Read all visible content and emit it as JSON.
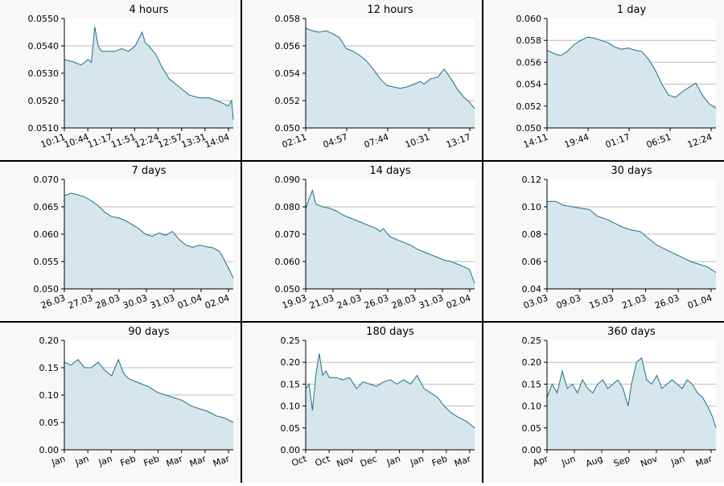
{
  "chart_data": [
    {
      "type": "area",
      "title": "4 hours",
      "ylim": [
        0.051,
        0.055
      ],
      "yticks": [
        "0.0510",
        "0.0520",
        "0.0530",
        "0.0540",
        "0.0550"
      ],
      "xticks": [
        "10:11",
        "10:44",
        "11:17",
        "11:51",
        "12:24",
        "12:57",
        "13:31",
        "14:04"
      ],
      "x": [
        0,
        0.06,
        0.1,
        0.14,
        0.16,
        0.18,
        0.2,
        0.22,
        0.26,
        0.3,
        0.34,
        0.38,
        0.42,
        0.46,
        0.48,
        0.5,
        0.54,
        0.58,
        0.62,
        0.66,
        0.7,
        0.74,
        0.8,
        0.86,
        0.9,
        0.94,
        0.97,
        0.99,
        1.0
      ],
      "y": [
        0.0535,
        0.0534,
        0.0533,
        0.0535,
        0.0534,
        0.0547,
        0.054,
        0.0538,
        0.0538,
        0.0538,
        0.0539,
        0.0538,
        0.054,
        0.0545,
        0.0541,
        0.054,
        0.0537,
        0.0532,
        0.0528,
        0.0526,
        0.0524,
        0.0522,
        0.0521,
        0.0521,
        0.052,
        0.0519,
        0.0518,
        0.052,
        0.0513
      ]
    },
    {
      "type": "area",
      "title": "12 hours",
      "ylim": [
        0.05,
        0.058
      ],
      "yticks": [
        "0.050",
        "0.052",
        "0.054",
        "0.056",
        "0.058"
      ],
      "xticks": [
        "02:11",
        "04:57",
        "07:44",
        "10:31",
        "13:17"
      ],
      "x": [
        0,
        0.04,
        0.08,
        0.12,
        0.16,
        0.2,
        0.24,
        0.28,
        0.32,
        0.36,
        0.4,
        0.44,
        0.48,
        0.52,
        0.56,
        0.6,
        0.64,
        0.68,
        0.7,
        0.74,
        0.78,
        0.82,
        0.86,
        0.9,
        0.94,
        0.97,
        1.0
      ],
      "y": [
        0.0573,
        0.0571,
        0.057,
        0.0571,
        0.0569,
        0.0566,
        0.0558,
        0.0556,
        0.0553,
        0.0549,
        0.0543,
        0.0536,
        0.0531,
        0.053,
        0.0529,
        0.053,
        0.0532,
        0.0534,
        0.0532,
        0.0536,
        0.0537,
        0.0543,
        0.0536,
        0.0528,
        0.0522,
        0.0519,
        0.0514
      ]
    },
    {
      "type": "area",
      "title": "1 day",
      "ylim": [
        0.05,
        0.06
      ],
      "yticks": [
        "0.050",
        "0.052",
        "0.054",
        "0.056",
        "0.058",
        "0.060"
      ],
      "xticks": [
        "14:11",
        "19:44",
        "01:17",
        "06:51",
        "12:24"
      ],
      "x": [
        0,
        0.04,
        0.08,
        0.12,
        0.16,
        0.2,
        0.24,
        0.28,
        0.32,
        0.36,
        0.4,
        0.44,
        0.48,
        0.52,
        0.56,
        0.6,
        0.64,
        0.68,
        0.72,
        0.76,
        0.8,
        0.84,
        0.88,
        0.92,
        0.96,
        1.0
      ],
      "y": [
        0.0571,
        0.0568,
        0.0566,
        0.057,
        0.0576,
        0.058,
        0.0583,
        0.0582,
        0.058,
        0.0578,
        0.0574,
        0.0572,
        0.0573,
        0.0571,
        0.057,
        0.0563,
        0.0553,
        0.054,
        0.053,
        0.0528,
        0.0533,
        0.0537,
        0.0541,
        0.053,
        0.0522,
        0.0518
      ]
    },
    {
      "type": "area",
      "title": "7 days",
      "ylim": [
        0.05,
        0.07
      ],
      "yticks": [
        "0.050",
        "0.055",
        "0.060",
        "0.065",
        "0.070"
      ],
      "xticks": [
        "26.03",
        "27.03",
        "28.03",
        "30.03",
        "31.03",
        "01.04",
        "02.04"
      ],
      "x": [
        0,
        0.04,
        0.08,
        0.12,
        0.16,
        0.2,
        0.24,
        0.28,
        0.32,
        0.36,
        0.4,
        0.44,
        0.48,
        0.52,
        0.56,
        0.6,
        0.64,
        0.68,
        0.72,
        0.76,
        0.8,
        0.84,
        0.88,
        0.92,
        0.96,
        1.0
      ],
      "y": [
        0.067,
        0.0675,
        0.0672,
        0.0668,
        0.0661,
        0.0652,
        0.064,
        0.0632,
        0.063,
        0.0625,
        0.0618,
        0.061,
        0.06,
        0.0596,
        0.0602,
        0.0598,
        0.0605,
        0.059,
        0.058,
        0.0576,
        0.058,
        0.0577,
        0.0575,
        0.0568,
        0.0545,
        0.052
      ]
    },
    {
      "type": "area",
      "title": "14 days",
      "ylim": [
        0.05,
        0.09
      ],
      "yticks": [
        "0.050",
        "0.060",
        "0.070",
        "0.080",
        "0.090"
      ],
      "xticks": [
        "19.03",
        "21.03",
        "24.03",
        "26.03",
        "28.03",
        "31.03",
        "02.04"
      ],
      "x": [
        0,
        0.02,
        0.04,
        0.06,
        0.1,
        0.14,
        0.18,
        0.22,
        0.26,
        0.3,
        0.34,
        0.38,
        0.42,
        0.44,
        0.46,
        0.5,
        0.54,
        0.58,
        0.62,
        0.66,
        0.7,
        0.74,
        0.78,
        0.82,
        0.86,
        0.9,
        0.94,
        0.97,
        1.0
      ],
      "y": [
        0.079,
        0.083,
        0.086,
        0.081,
        0.08,
        0.0795,
        0.0785,
        0.077,
        0.076,
        0.075,
        0.074,
        0.073,
        0.072,
        0.071,
        0.072,
        0.069,
        0.068,
        0.067,
        0.066,
        0.0645,
        0.0635,
        0.0625,
        0.0615,
        0.0605,
        0.06,
        0.059,
        0.058,
        0.057,
        0.052
      ]
    },
    {
      "type": "area",
      "title": "30 days",
      "ylim": [
        0.04,
        0.12
      ],
      "yticks": [
        "0.04",
        "0.06",
        "0.08",
        "0.10",
        "0.12"
      ],
      "xticks": [
        "03.03",
        "09.03",
        "15.03",
        "21.03",
        "26.03",
        "01.04"
      ],
      "x": [
        0,
        0.05,
        0.1,
        0.15,
        0.2,
        0.25,
        0.3,
        0.35,
        0.4,
        0.45,
        0.5,
        0.55,
        0.6,
        0.65,
        0.7,
        0.75,
        0.8,
        0.85,
        0.9,
        0.95,
        1.0
      ],
      "y": [
        0.104,
        0.104,
        0.101,
        0.1,
        0.099,
        0.098,
        0.093,
        0.091,
        0.088,
        0.085,
        0.083,
        0.082,
        0.077,
        0.072,
        0.069,
        0.066,
        0.063,
        0.06,
        0.058,
        0.056,
        0.052
      ]
    },
    {
      "type": "area",
      "title": "90 days",
      "ylim": [
        0,
        0.2
      ],
      "yticks": [
        "0.00",
        "0.05",
        "0.10",
        "0.15",
        "0.20"
      ],
      "xticks": [
        "Jan",
        "Jan",
        "Jan",
        "Feb",
        "Feb",
        "Mar",
        "Mar",
        "Mar"
      ],
      "x": [
        0,
        0.04,
        0.08,
        0.12,
        0.16,
        0.2,
        0.24,
        0.28,
        0.32,
        0.35,
        0.38,
        0.42,
        0.46,
        0.5,
        0.55,
        0.6,
        0.65,
        0.7,
        0.75,
        0.8,
        0.85,
        0.9,
        0.95,
        1.0
      ],
      "y": [
        0.16,
        0.155,
        0.165,
        0.15,
        0.15,
        0.16,
        0.145,
        0.135,
        0.165,
        0.14,
        0.13,
        0.125,
        0.12,
        0.115,
        0.105,
        0.1,
        0.095,
        0.09,
        0.08,
        0.075,
        0.07,
        0.062,
        0.058,
        0.05
      ]
    },
    {
      "type": "area",
      "title": "180 days",
      "ylim": [
        0,
        0.25
      ],
      "yticks": [
        "0.00",
        "0.05",
        "0.10",
        "0.15",
        "0.20",
        "0.25"
      ],
      "xticks": [
        "Oct",
        "Oct",
        "Nov",
        "Dec",
        "Jan",
        "Jan",
        "Feb",
        "Mar"
      ],
      "x": [
        0,
        0.02,
        0.04,
        0.06,
        0.08,
        0.1,
        0.12,
        0.14,
        0.18,
        0.22,
        0.26,
        0.3,
        0.34,
        0.38,
        0.42,
        0.46,
        0.5,
        0.54,
        0.58,
        0.62,
        0.66,
        0.7,
        0.74,
        0.78,
        0.82,
        0.86,
        0.9,
        0.95,
        1.0
      ],
      "y": [
        0.14,
        0.15,
        0.09,
        0.17,
        0.22,
        0.17,
        0.18,
        0.165,
        0.165,
        0.16,
        0.165,
        0.14,
        0.155,
        0.15,
        0.145,
        0.155,
        0.16,
        0.15,
        0.16,
        0.15,
        0.17,
        0.14,
        0.13,
        0.12,
        0.1,
        0.085,
        0.075,
        0.065,
        0.05
      ]
    },
    {
      "type": "area",
      "title": "360 days",
      "ylim": [
        0,
        0.25
      ],
      "yticks": [
        "0.00",
        "0.05",
        "0.10",
        "0.15",
        "0.20",
        "0.25"
      ],
      "xticks": [
        "Apr",
        "Jun",
        "Aug",
        "Sep",
        "Nov",
        "Jan",
        "Mar"
      ],
      "x": [
        0,
        0.03,
        0.06,
        0.09,
        0.12,
        0.15,
        0.18,
        0.21,
        0.24,
        0.27,
        0.3,
        0.33,
        0.36,
        0.39,
        0.42,
        0.45,
        0.48,
        0.5,
        0.53,
        0.56,
        0.59,
        0.62,
        0.65,
        0.68,
        0.71,
        0.74,
        0.77,
        0.8,
        0.83,
        0.86,
        0.89,
        0.92,
        0.95,
        0.98,
        1.0
      ],
      "y": [
        0.12,
        0.15,
        0.13,
        0.18,
        0.14,
        0.15,
        0.13,
        0.16,
        0.14,
        0.13,
        0.15,
        0.16,
        0.14,
        0.15,
        0.16,
        0.14,
        0.1,
        0.15,
        0.2,
        0.21,
        0.16,
        0.15,
        0.17,
        0.14,
        0.15,
        0.16,
        0.15,
        0.14,
        0.16,
        0.15,
        0.13,
        0.12,
        0.1,
        0.075,
        0.05
      ]
    }
  ],
  "colors": {
    "line": "#1f6f8b",
    "fill": "#d5e6ed",
    "panel_bg": "#f8f8f8",
    "plot_bg": "#ffffff",
    "grid": "#bbbbbb",
    "border": "#000000"
  }
}
